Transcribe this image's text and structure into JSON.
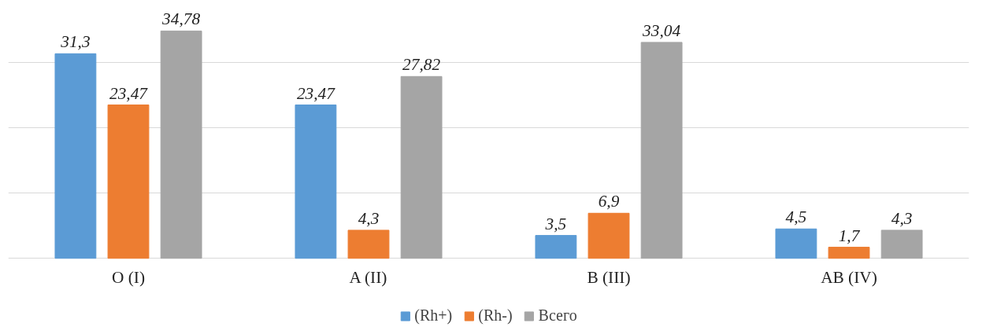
{
  "chart_data": {
    "type": "bar",
    "categories": [
      "O (I)",
      "A (II)",
      "B (III)",
      "AB (IV)"
    ],
    "series": [
      {
        "name": "(Rh+)",
        "color": "#5b9bd5",
        "values": [
          31.3,
          23.47,
          3.5,
          4.5
        ],
        "value_labels": [
          "31,3",
          "23,47",
          "3,5",
          "4,5"
        ]
      },
      {
        "name": "(Rh-)",
        "color": "#ed7d31",
        "values": [
          23.47,
          4.3,
          6.9,
          1.7
        ],
        "value_labels": [
          "23,47",
          "4,3",
          "6,9",
          "1,7"
        ]
      },
      {
        "name": "Всего",
        "color": "#a5a5a5",
        "values": [
          34.78,
          27.82,
          33.04,
          4.3
        ],
        "value_labels": [
          "34,78",
          "27,82",
          "33,04",
          "4,3"
        ]
      }
    ],
    "yticks": [
      {
        "value": 0,
        "label": null
      },
      {
        "value": 10,
        "label": null
      },
      {
        "value": 20,
        "label": null
      },
      {
        "value": 30,
        "label": null
      }
    ],
    "grid": "y",
    "legend": "bottom",
    "tick_labels": "x"
  }
}
